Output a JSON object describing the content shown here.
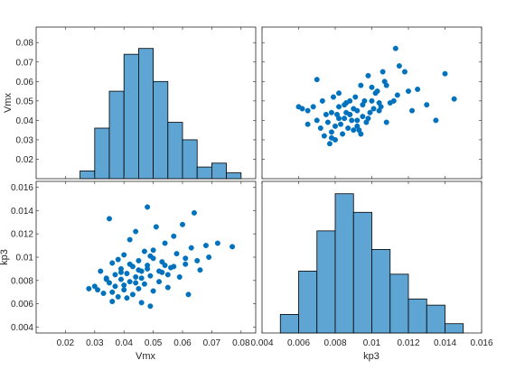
{
  "colors": {
    "accent": "#0072BD",
    "bar_fill": "#5FA5D4",
    "bar_edge": "#000000",
    "axis": "#262626"
  },
  "chart_data": [
    {
      "type": "bar",
      "panel": "top-left",
      "xlabel": "",
      "ylabel": "Vmx",
      "bin_edges": [
        0.025,
        0.03,
        0.035,
        0.04,
        0.045,
        0.05,
        0.055,
        0.06,
        0.065,
        0.07,
        0.075,
        0.08
      ],
      "values": [
        0.014,
        0.036,
        0.055,
        0.074,
        0.077,
        0.06,
        0.039,
        0.03,
        0.016,
        0.018,
        0.013
      ],
      "xlim": [
        0.01,
        0.085
      ],
      "ylim": [
        0.01,
        0.088
      ],
      "yticks": [
        "0.02",
        "0.03",
        "0.04",
        "0.05",
        "0.06",
        "0.07",
        "0.08"
      ],
      "grid": false
    },
    {
      "type": "scatter",
      "panel": "top-right",
      "xlabel": "",
      "ylabel": "",
      "x": [
        0.006,
        0.0062,
        0.0065,
        0.0065,
        0.0068,
        0.007,
        0.007,
        0.0072,
        0.0073,
        0.0074,
        0.0075,
        0.0076,
        0.0077,
        0.0078,
        0.0078,
        0.0079,
        0.008,
        0.008,
        0.0081,
        0.0082,
        0.0082,
        0.0083,
        0.0084,
        0.0085,
        0.0085,
        0.0086,
        0.0087,
        0.0088,
        0.0088,
        0.0089,
        0.009,
        0.009,
        0.0091,
        0.0092,
        0.0092,
        0.0093,
        0.0094,
        0.0095,
        0.0095,
        0.0096,
        0.0097,
        0.0098,
        0.0099,
        0.01,
        0.01,
        0.0101,
        0.0102,
        0.0103,
        0.0104,
        0.0105,
        0.0106,
        0.0107,
        0.0108,
        0.011,
        0.0112,
        0.0113,
        0.0115,
        0.0118,
        0.012,
        0.0122,
        0.0125,
        0.013,
        0.0135,
        0.014,
        0.0145,
        0.0078,
        0.0082,
        0.0088,
        0.0092,
        0.0098,
        0.0104,
        0.0108,
        0.0114,
        0.0086,
        0.0094
      ],
      "y": [
        0.047,
        0.046,
        0.038,
        0.045,
        0.047,
        0.04,
        0.061,
        0.036,
        0.05,
        0.032,
        0.043,
        0.039,
        0.028,
        0.044,
        0.034,
        0.052,
        0.037,
        0.03,
        0.043,
        0.041,
        0.054,
        0.038,
        0.033,
        0.048,
        0.041,
        0.044,
        0.036,
        0.043,
        0.05,
        0.04,
        0.046,
        0.035,
        0.052,
        0.04,
        0.045,
        0.035,
        0.058,
        0.048,
        0.042,
        0.05,
        0.039,
        0.063,
        0.044,
        0.05,
        0.057,
        0.046,
        0.054,
        0.055,
        0.049,
        0.047,
        0.065,
        0.06,
        0.058,
        0.049,
        0.05,
        0.077,
        0.068,
        0.065,
        0.055,
        0.045,
        0.056,
        0.048,
        0.04,
        0.064,
        0.051,
        0.031,
        0.047,
        0.043,
        0.037,
        0.041,
        0.045,
        0.039,
        0.053,
        0.049,
        0.033
      ],
      "xlim": [
        0.004,
        0.016
      ],
      "ylim": [
        0.01,
        0.088
      ],
      "grid": false
    },
    {
      "type": "scatter",
      "panel": "bottom-left",
      "xlabel": "Vmx",
      "ylabel": "kp3",
      "x": [
        0.028,
        0.03,
        0.031,
        0.032,
        0.033,
        0.034,
        0.035,
        0.035,
        0.036,
        0.036,
        0.037,
        0.037,
        0.038,
        0.038,
        0.039,
        0.039,
        0.04,
        0.04,
        0.041,
        0.041,
        0.042,
        0.042,
        0.043,
        0.043,
        0.044,
        0.044,
        0.045,
        0.045,
        0.046,
        0.046,
        0.047,
        0.047,
        0.048,
        0.048,
        0.049,
        0.049,
        0.05,
        0.05,
        0.051,
        0.052,
        0.052,
        0.053,
        0.054,
        0.055,
        0.055,
        0.056,
        0.057,
        0.058,
        0.059,
        0.06,
        0.061,
        0.062,
        0.063,
        0.064,
        0.065,
        0.066,
        0.068,
        0.069,
        0.072,
        0.077,
        0.036,
        0.039,
        0.042,
        0.044,
        0.046,
        0.048,
        0.05,
        0.053,
        0.057,
        0.061,
        0.034,
        0.04,
        0.045,
        0.049,
        0.054
      ],
      "y": [
        0.0073,
        0.0075,
        0.0072,
        0.0088,
        0.0069,
        0.0082,
        0.0133,
        0.0078,
        0.0095,
        0.0062,
        0.0085,
        0.0075,
        0.0098,
        0.0066,
        0.009,
        0.0081,
        0.0072,
        0.0102,
        0.0086,
        0.0065,
        0.0079,
        0.0115,
        0.0092,
        0.0068,
        0.0083,
        0.0122,
        0.0073,
        0.0097,
        0.0088,
        0.0061,
        0.0105,
        0.0077,
        0.0093,
        0.0143,
        0.0084,
        0.0058,
        0.0099,
        0.0071,
        0.0126,
        0.0088,
        0.0079,
        0.0096,
        0.0112,
        0.0085,
        0.0074,
        0.0091,
        0.0118,
        0.0103,
        0.0083,
        0.0128,
        0.0094,
        0.0068,
        0.0108,
        0.0138,
        0.0097,
        0.0089,
        0.011,
        0.01,
        0.0112,
        0.0109,
        0.007,
        0.0087,
        0.0094,
        0.0078,
        0.0082,
        0.009,
        0.0106,
        0.0087,
        0.0092,
        0.0099,
        0.0081,
        0.0076,
        0.0089,
        0.0101,
        0.0093
      ],
      "xlim": [
        0.01,
        0.085
      ],
      "ylim": [
        0.0035,
        0.0165
      ],
      "xticks": [
        "0.02",
        "0.03",
        "0.04",
        "0.05",
        "0.06",
        "0.07",
        "0.08"
      ],
      "yticks": [
        "0.004",
        "0.006",
        "0.008",
        "0.01",
        "0.012",
        "0.014",
        "0.016"
      ],
      "grid": false
    },
    {
      "type": "bar",
      "panel": "bottom-right",
      "xlabel": "kp3",
      "ylabel": "",
      "bin_edges": [
        0.005,
        0.006,
        0.007,
        0.008,
        0.009,
        0.01,
        0.011,
        0.012,
        0.013,
        0.014,
        0.015
      ],
      "values": [
        6,
        20,
        33,
        45,
        39,
        27,
        19,
        11,
        9,
        3
      ],
      "xlim": [
        0.004,
        0.016
      ],
      "ylim": [
        0,
        49
      ],
      "xticks": [
        "0.004",
        "0.006",
        "0.008",
        "0.01",
        "0.012",
        "0.014",
        "0.016"
      ],
      "grid": false
    }
  ]
}
